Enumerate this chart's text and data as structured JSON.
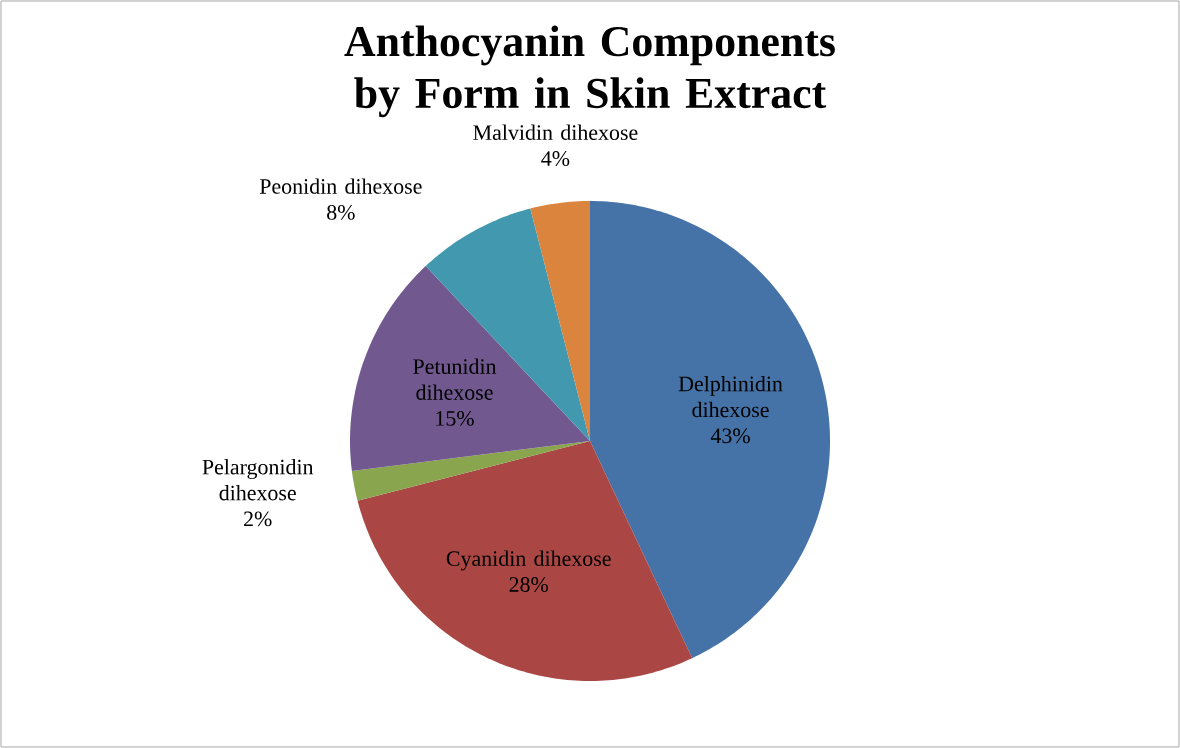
{
  "chart_data": {
    "type": "pie",
    "title": "Anthocyanin Components by Form in Skin Extract",
    "categories": [
      "Delphinidin dihexose",
      "Cyanidin dihexose",
      "Pelargonidin dihexose",
      "Petunidin dihexose",
      "Peonidin dihexose",
      "Malvidin dihexose"
    ],
    "values": [
      43,
      28,
      2,
      15,
      8,
      4
    ],
    "colors": [
      "#4572a7",
      "#aa4643",
      "#89a54e",
      "#71588f",
      "#4198af",
      "#db843d"
    ],
    "value_labels": [
      "43%",
      "28%",
      "2%",
      "15%",
      "8%",
      "4%"
    ]
  }
}
